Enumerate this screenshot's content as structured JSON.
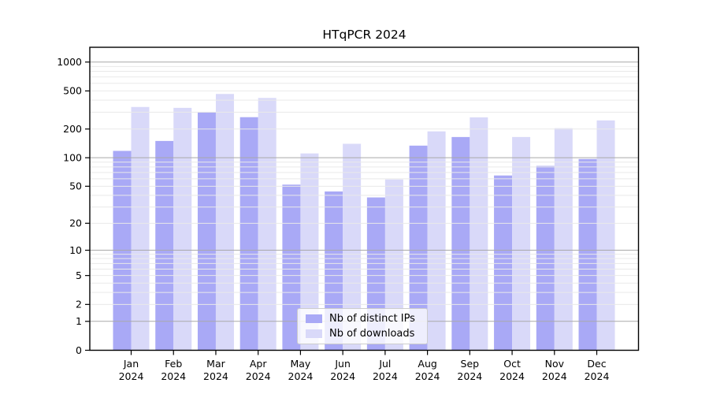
{
  "chart_data": {
    "type": "bar",
    "title": "HTqPCR 2024",
    "y_scale": "log1p",
    "grid": "horizontal-log",
    "legend_position": "lower center",
    "categories": [
      "Jan 2024",
      "Feb 2024",
      "Mar 2024",
      "Apr 2024",
      "May 2024",
      "Jun 2024",
      "Jul 2024",
      "Aug 2024",
      "Sep 2024",
      "Oct 2024",
      "Nov 2024",
      "Dec 2024"
    ],
    "series": [
      {
        "name": "Nb of distinct IPs",
        "color": "#a9a9f6",
        "values": [
          118,
          150,
          299,
          266,
          52,
          44,
          38,
          134,
          165,
          65,
          82,
          97
        ]
      },
      {
        "name": "Nb of downloads",
        "color": "#d9d9f9",
        "values": [
          340,
          333,
          465,
          422,
          111,
          140,
          59,
          189,
          265,
          165,
          204,
          246
        ]
      }
    ],
    "y_ticks": [
      0,
      1,
      2,
      5,
      10,
      20,
      50,
      100,
      200,
      500,
      1000
    ],
    "ylim": [
      0,
      1430
    ],
    "colors": {
      "major_grid": "#a9a9a9",
      "minor_grid": "#e9e9e9",
      "axis": "#000000",
      "text": "#000000",
      "legend_border": "#cccccc",
      "legend_bg": "rgba(255,255,255,0.8)"
    }
  }
}
